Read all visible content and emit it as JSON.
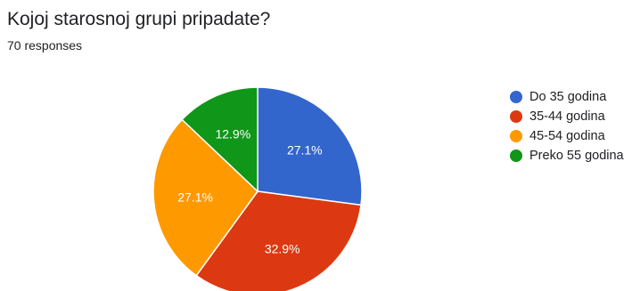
{
  "header": {
    "title": "Kojoj starosnoj grupi pripadate?",
    "responses": "70 responses"
  },
  "chart_data": {
    "type": "pie",
    "title": "Kojoj starosnoj grupi pripadate?",
    "categories": [
      "Do 35 godina",
      "35-44 godina",
      "45-54 godina",
      "Preko 55 godina"
    ],
    "values": [
      27.1,
      32.9,
      27.1,
      12.9
    ],
    "labels": [
      "27.1%",
      "32.9%",
      "27.1%",
      "12.9%"
    ],
    "colors": [
      "#3366cc",
      "#dc3912",
      "#ff9900",
      "#109618"
    ],
    "legend_position": "right"
  }
}
